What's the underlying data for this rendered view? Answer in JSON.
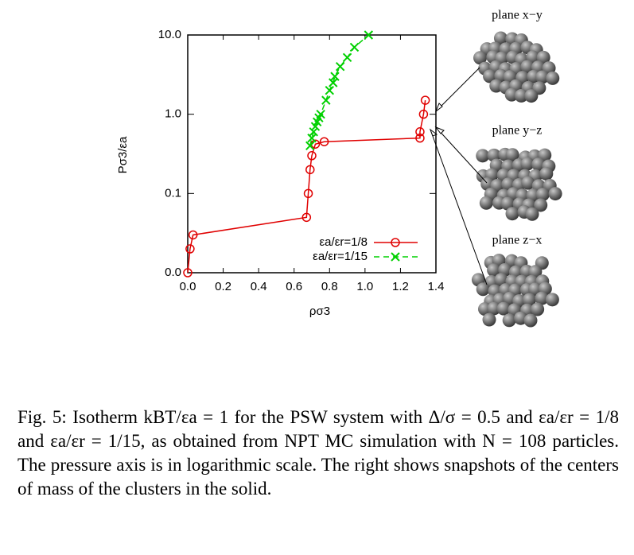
{
  "chart_data": {
    "type": "line",
    "log_y": true,
    "xlabel": "ρσ3",
    "ylabel": "Pσ3/εa",
    "xlim": [
      0,
      1.4
    ],
    "xticks": [
      {
        "value": 0,
        "label": "0.0"
      },
      0.2,
      0.4,
      0.6,
      0.8,
      {
        "value": 1,
        "label": "1.0"
      },
      1.2,
      1.4
    ],
    "ylim": [
      0.01,
      10
    ],
    "yticks": [
      {
        "value": 0.01,
        "label": "0.0"
      },
      0.1,
      {
        "value": 1,
        "label": "1.0"
      },
      {
        "value": 10,
        "label": "10.0"
      }
    ],
    "legend": "lower right",
    "series": [
      {
        "name": "εa/εr=1/8",
        "color": "#e00000",
        "marker": "circle",
        "x": [
          0,
          0.013,
          0.03,
          0.67,
          0.68,
          0.69,
          0.7,
          0.72,
          0.77,
          1.31,
          1.31,
          1.33,
          1.34
        ],
        "values": [
          0.01,
          0.02,
          0.03,
          0.05,
          0.1,
          0.2,
          0.3,
          0.42,
          0.45,
          0.5,
          0.6,
          1.0,
          1.5
        ]
      },
      {
        "name": "εa/εr=1/15",
        "color": "#00d000",
        "marker": "x",
        "x": [
          0.69,
          0.7,
          0.71,
          0.72,
          0.73,
          0.74,
          0.75,
          0.78,
          0.8,
          0.82,
          0.83,
          0.86,
          0.9,
          0.94,
          1.02
        ],
        "values": [
          0.4,
          0.5,
          0.6,
          0.7,
          0.8,
          0.9,
          1.0,
          1.5,
          2.0,
          2.5,
          3.0,
          4.0,
          5.2,
          7.0,
          10.0
        ]
      }
    ]
  },
  "snapshots": [
    "plane x−y",
    "plane y−z",
    "plane z−x"
  ],
  "caption": "Fig. 5: Isotherm kBT/εa = 1 for the PSW system with Δ/σ = 0.5 and εa/εr = 1/8 and εa/εr = 1/15, as obtained from NPT MC simulation with N = 108 particles. The pressure axis is in logarithmic scale. The right shows snapshots of the centers of mass of the clusters in the solid."
}
